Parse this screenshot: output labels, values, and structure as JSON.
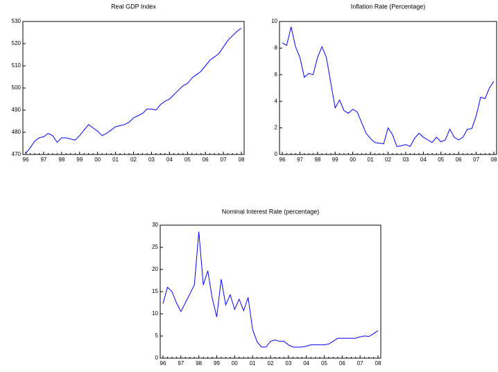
{
  "chart_data": [
    {
      "type": "line",
      "title": "Real GDP Index",
      "categories": [
        "96",
        null,
        null,
        null,
        "97",
        null,
        null,
        null,
        "98",
        null,
        null,
        null,
        "99",
        null,
        null,
        null,
        "00",
        null,
        null,
        null,
        "01",
        null,
        null,
        null,
        "02",
        null,
        null,
        null,
        "03",
        null,
        null,
        null,
        "04",
        null,
        null,
        null,
        "05",
        null,
        null,
        null,
        "06",
        null,
        null,
        null,
        "07",
        null,
        null,
        null,
        "08"
      ],
      "values": [
        470.5,
        473,
        476,
        477.5,
        478,
        479.5,
        478.5,
        475.5,
        477.5,
        477.5,
        477,
        476.5,
        478.5,
        481,
        483.5,
        482,
        480.5,
        478.5,
        479.5,
        481,
        482.5,
        483,
        483.5,
        484.5,
        486.5,
        487.5,
        488.5,
        490.5,
        490.5,
        490,
        492.5,
        494,
        495,
        497,
        499,
        501,
        502,
        504.5,
        506,
        507.5,
        510,
        512.5,
        514,
        515.5,
        518.5,
        521.5,
        523.5,
        525.5,
        527
      ],
      "color": "#0000ff",
      "ylim": [
        470,
        530
      ],
      "yticks": [
        470,
        480,
        490,
        500,
        510,
        520,
        530
      ]
    },
    {
      "type": "line",
      "title": "Inflation Rate (Percentage)",
      "categories": [
        "96",
        null,
        null,
        null,
        "97",
        null,
        null,
        null,
        "98",
        null,
        null,
        null,
        "99",
        null,
        null,
        null,
        "00",
        null,
        null,
        null,
        "01",
        null,
        null,
        null,
        "02",
        null,
        null,
        null,
        "03",
        null,
        null,
        null,
        "04",
        null,
        null,
        null,
        "05",
        null,
        null,
        null,
        "06",
        null,
        null,
        null,
        "07",
        null,
        null,
        null,
        "08"
      ],
      "values": [
        8.4,
        8.2,
        9.6,
        8.1,
        7.3,
        5.8,
        6.1,
        6.0,
        7.3,
        8.1,
        7.3,
        5.4,
        3.5,
        4.1,
        3.3,
        3.1,
        3.4,
        3.2,
        2.4,
        1.6,
        1.2,
        0.9,
        0.85,
        0.8,
        2.0,
        1.5,
        0.6,
        0.65,
        0.75,
        0.6,
        1.2,
        1.6,
        1.3,
        1.1,
        0.9,
        1.3,
        0.95,
        1.1,
        1.9,
        1.3,
        1.1,
        1.3,
        1.9,
        1.95,
        2.9,
        4.3,
        4.2,
        5.0,
        5.5
      ],
      "color": "#0000ff",
      "ylim": [
        0,
        10
      ],
      "yticks": [
        0,
        2,
        4,
        6,
        8,
        10
      ]
    },
    {
      "type": "line",
      "title": "Nominal Interest Rate (percentage)",
      "categories": [
        "96",
        null,
        null,
        null,
        "97",
        null,
        null,
        null,
        "98",
        null,
        null,
        null,
        "99",
        null,
        null,
        null,
        "00",
        null,
        null,
        null,
        "01",
        null,
        null,
        null,
        "02",
        null,
        null,
        null,
        "03",
        null,
        null,
        null,
        "04",
        null,
        null,
        null,
        "05",
        null,
        null,
        null,
        "06",
        null,
        null,
        null,
        "07",
        null,
        null,
        null,
        "08"
      ],
      "values": [
        12.3,
        16,
        15,
        12.5,
        10.5,
        12.5,
        14.5,
        16.5,
        28.5,
        16.5,
        19.7,
        13.5,
        9.3,
        17.8,
        12,
        14.3,
        11,
        13.3,
        10.7,
        13.7,
        6.5,
        3.7,
        2.5,
        2.5,
        3.8,
        4.1,
        3.8,
        3.8,
        3,
        2.5,
        2.5,
        2.5,
        2.7,
        3,
        3,
        3,
        3,
        3.2,
        3.8,
        4.5,
        4.5,
        4.5,
        4.5,
        4.5,
        4.8,
        5,
        4.9,
        5.5,
        6.2
      ],
      "color": "#0000ff",
      "ylim": [
        0,
        30
      ],
      "yticks": [
        0,
        5,
        10,
        15,
        20,
        25,
        30
      ]
    }
  ]
}
